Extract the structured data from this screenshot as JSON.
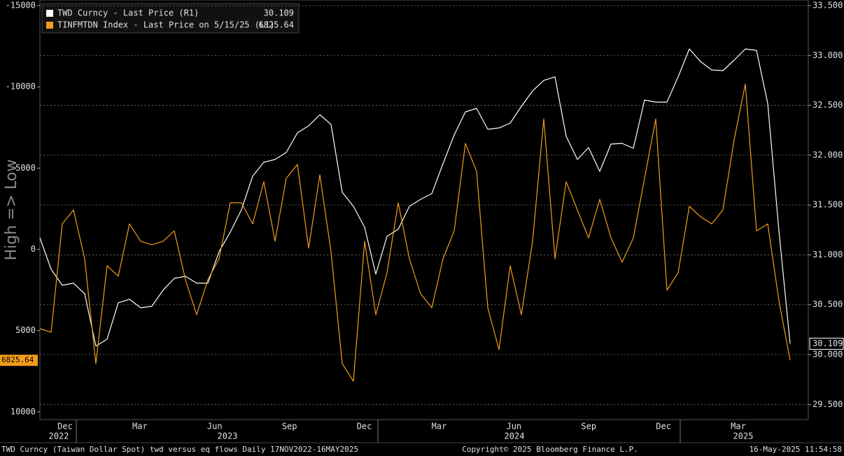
{
  "chart_data": {
    "type": "line",
    "y_axis_label": "High => Low",
    "ylim": [
      -15344,
      10476
    ],
    "y_inverted": true,
    "yticks": [
      -15000,
      -10000,
      {
        "value": -5000,
        "label": "5000"
      },
      0,
      5000,
      10000
    ],
    "y2lim": [
      29.348,
      33.556
    ],
    "y2ticks": [
      {
        "value": 29.5,
        "label": "29.500"
      },
      {
        "value": 30,
        "label": "30.000"
      },
      {
        "value": 30.5,
        "label": "30.500"
      },
      {
        "value": 31,
        "label": "31.000"
      },
      {
        "value": 31.5,
        "label": "31.500"
      },
      {
        "value": 32,
        "label": "32.000"
      },
      {
        "value": 32.5,
        "label": "32.500"
      },
      {
        "value": 33,
        "label": "33.000"
      },
      {
        "value": 33.5,
        "label": "33.500"
      }
    ],
    "grid": true,
    "x_labels": [
      "Dec",
      "Mar",
      "Jun",
      "Sep",
      "Dec",
      "Mar",
      "Jun",
      "Sep",
      "Dec",
      "Mar"
    ],
    "year_labels": [
      "2022",
      "2023",
      "2024",
      "2025"
    ],
    "series": [
      {
        "name": "TWD Curncy - Last Price (R1)",
        "legend_value": "30.109",
        "last_label": "30.109",
        "axis": "y2",
        "color": "#ffffff",
        "values": [
          31.172,
          30.856,
          30.695,
          30.716,
          30.611,
          30.085,
          30.155,
          30.52,
          30.555,
          30.47,
          30.484,
          30.646,
          30.765,
          30.786,
          30.716,
          30.716,
          31.032,
          31.228,
          31.452,
          31.789,
          31.929,
          31.957,
          32.027,
          32.224,
          32.294,
          32.406,
          32.308,
          31.628,
          31.487,
          31.277,
          30.807,
          31.186,
          31.256,
          31.487,
          31.557,
          31.614,
          31.915,
          32.203,
          32.434,
          32.469,
          32.259,
          32.273,
          32.322,
          32.49,
          32.644,
          32.75,
          32.785,
          32.189,
          31.957,
          32.076,
          31.838,
          32.111,
          32.118,
          32.069,
          32.553,
          32.532,
          32.532,
          32.785,
          33.065,
          32.939,
          32.855,
          32.848,
          32.953,
          33.065,
          33.051,
          32.518,
          31.242,
          30.109
        ]
      },
      {
        "name": "TINFMTDN Index - Last Price on 5/15/25 (L1)",
        "legend_value": "6825.64",
        "last_label": "6825.64",
        "color": "#f39c1a",
        "values": [
          4880,
          5100,
          -1570,
          -2430,
          580,
          7030,
          1010,
          1650,
          -1570,
          -500,
          -280,
          -500,
          -1140,
          1870,
          4020,
          1870,
          580,
          -2870,
          -2870,
          -1570,
          -4160,
          -500,
          -4370,
          -5230,
          -70,
          -4590,
          150,
          7030,
          8110,
          -500,
          4020,
          1440,
          -2870,
          580,
          2730,
          3590,
          580,
          -1140,
          -6520,
          -4800,
          3590,
          6170,
          1010,
          4020,
          -500,
          -8030,
          580,
          -4160,
          -2430,
          -710,
          -3080,
          -710,
          790,
          -710,
          -4370,
          -8030,
          2510,
          1440,
          -2650,
          -2010,
          -1570,
          -2430,
          -6740,
          -10180,
          -1140,
          -1570,
          3160,
          6825.64
        ]
      }
    ],
    "footer_left": "TWD Curncy (Taiwan Dollar Spot) twd versus eq flows  Daily 17NOV2022-16MAY2025",
    "footer_center": "Copyright© 2025 Bloomberg Finance L.P.",
    "footer_right": "16-May-2025 11:54:58"
  }
}
